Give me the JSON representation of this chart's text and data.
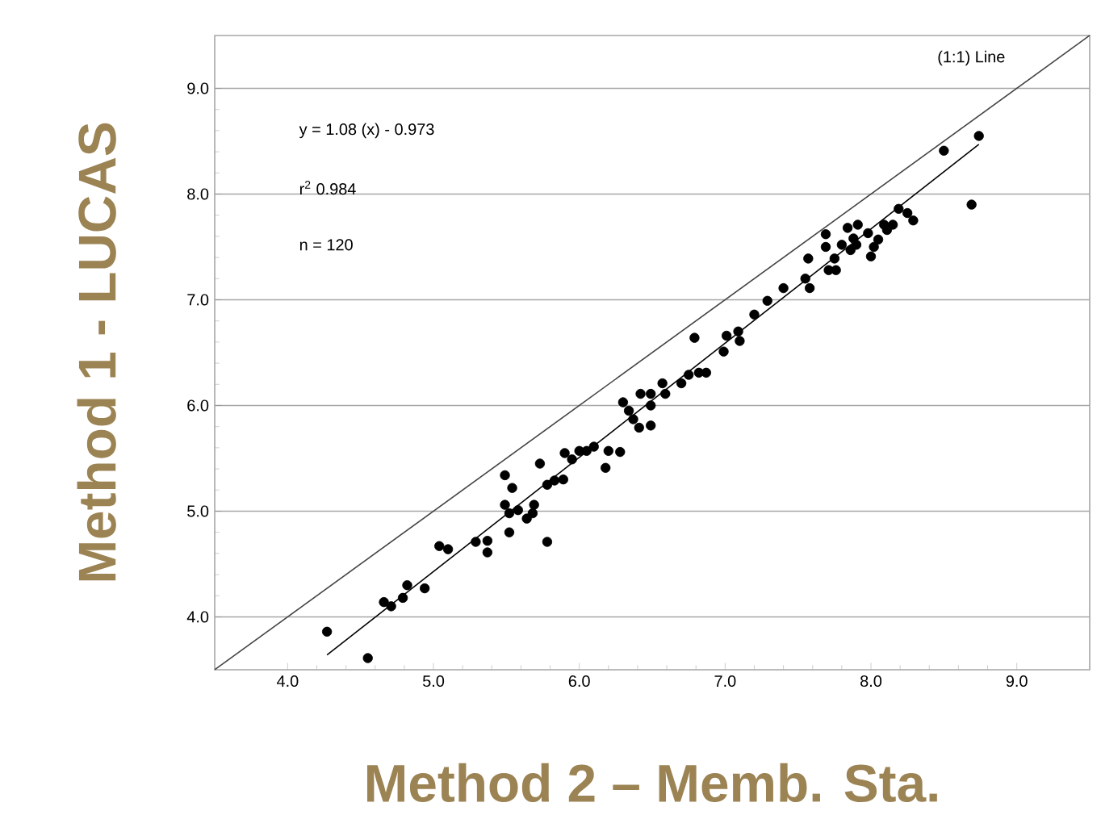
{
  "chart_data": {
    "type": "scatter",
    "xlabel": "Method 2 – Memb. Sta.",
    "ylabel": "Method 1 - LUCAS",
    "annotations": [
      "(1:1) Line",
      "y = 1.08 (x) - 0.973",
      "r$^{2}$ 0.984",
      "n = 120"
    ],
    "xlim": [
      3.5,
      9.5
    ],
    "ylim": [
      3.5,
      9.5
    ],
    "xticks": [
      {
        "value": 4,
        "label": "4.0"
      },
      {
        "value": 5,
        "label": "5.0"
      },
      {
        "value": 6,
        "label": "6.0"
      },
      {
        "value": 7,
        "label": "7.0"
      },
      {
        "value": 8,
        "label": "8.0"
      },
      {
        "value": 9,
        "label": "9.0"
      }
    ],
    "yticks": [
      {
        "value": 4,
        "label": "4.0"
      },
      {
        "value": 5,
        "label": "5.0"
      },
      {
        "value": 6,
        "label": "6.0"
      },
      {
        "value": 7,
        "label": "7.0"
      },
      {
        "value": 8,
        "label": "8.0"
      },
      {
        "value": 9,
        "label": "9.0"
      }
    ],
    "grid": "y",
    "series": [
      {
        "color": "#000000",
        "marker": "circle",
        "x": [
          4.27,
          4.55,
          4.66,
          4.71,
          4.79,
          4.82,
          4.94,
          5.04,
          5.1,
          5.29,
          5.37,
          5.37,
          5.49,
          5.54,
          5.49,
          5.52,
          5.52,
          5.58,
          5.64,
          5.68,
          5.69,
          5.73,
          5.78,
          5.78,
          5.83,
          5.89,
          5.9,
          5.95,
          6.0,
          6.05,
          6.1,
          6.18,
          6.2,
          6.28,
          6.3,
          6.34,
          6.37,
          6.41,
          6.42,
          6.49,
          6.49,
          6.49,
          6.57,
          6.59,
          6.7,
          6.75,
          6.79,
          6.82,
          6.87,
          6.99,
          7.01,
          7.09,
          7.1,
          7.2,
          7.29,
          7.4,
          7.55,
          7.58,
          7.57,
          7.69,
          7.69,
          7.71,
          7.75,
          7.76,
          7.8,
          7.84,
          7.86,
          7.88,
          7.9,
          7.91,
          7.98,
          8.0,
          8.02,
          8.05,
          8.09,
          8.11,
          8.15,
          8.19,
          8.25,
          8.29,
          8.5,
          8.69,
          8.74
        ],
        "values": [
          3.86,
          3.61,
          4.14,
          4.1,
          4.18,
          4.3,
          4.27,
          4.67,
          4.64,
          4.71,
          4.72,
          4.61,
          5.34,
          5.22,
          5.06,
          4.98,
          4.8,
          5.01,
          4.93,
          4.98,
          5.06,
          5.45,
          4.71,
          5.25,
          5.29,
          5.3,
          5.55,
          5.49,
          5.57,
          5.57,
          5.61,
          5.41,
          5.57,
          5.56,
          6.03,
          5.95,
          5.87,
          5.79,
          6.11,
          5.81,
          6.0,
          6.11,
          6.21,
          6.11,
          6.21,
          6.29,
          6.64,
          6.31,
          6.31,
          6.51,
          6.66,
          6.7,
          6.61,
          6.86,
          6.99,
          7.11,
          7.2,
          7.11,
          7.39,
          7.62,
          7.5,
          7.28,
          7.39,
          7.28,
          7.52,
          7.68,
          7.47,
          7.58,
          7.52,
          7.71,
          7.63,
          7.41,
          7.5,
          7.57,
          7.71,
          7.66,
          7.71,
          7.86,
          7.82,
          7.75,
          8.41,
          7.9,
          8.55
        ]
      },
      {
        "type": "line",
        "color": "#000000",
        "marker": "none",
        "x": [
          4.27,
          8.74
        ],
        "values": [
          3.64,
          8.47
        ]
      },
      {
        "type": "line",
        "color": "#444444",
        "marker": "none",
        "x": [
          3.5,
          9.5
        ],
        "values": [
          3.5,
          9.5
        ]
      }
    ]
  }
}
